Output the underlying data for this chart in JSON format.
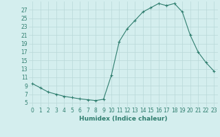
{
  "x": [
    0,
    1,
    2,
    3,
    4,
    5,
    6,
    7,
    8,
    9,
    10,
    11,
    12,
    13,
    14,
    15,
    16,
    17,
    18,
    19,
    20,
    21,
    22,
    23
  ],
  "y": [
    9.5,
    8.5,
    7.5,
    7.0,
    6.5,
    6.2,
    5.9,
    5.7,
    5.5,
    5.8,
    11.5,
    19.5,
    22.5,
    24.5,
    26.5,
    27.5,
    28.5,
    28.0,
    28.5,
    26.5,
    21.0,
    17.0,
    14.5,
    12.5
  ],
  "line_color": "#2e7d6e",
  "marker": "+",
  "marker_size": 3,
  "bg_color": "#d4eeee",
  "grid_color": "#b8d8d8",
  "xlabel": "Humidex (Indice chaleur)",
  "xlim": [
    -0.5,
    23.5
  ],
  "ylim": [
    4,
    29
  ],
  "yticks": [
    5,
    7,
    9,
    11,
    13,
    15,
    17,
    19,
    21,
    23,
    25,
    27
  ],
  "xticks": [
    0,
    1,
    2,
    3,
    4,
    5,
    6,
    7,
    8,
    9,
    10,
    11,
    12,
    13,
    14,
    15,
    16,
    17,
    18,
    19,
    20,
    21,
    22,
    23
  ],
  "tick_label_fontsize": 5.5,
  "xlabel_fontsize": 6.5,
  "label_color": "#2e7d6e",
  "linewidth": 0.8,
  "markeredgewidth": 0.8
}
